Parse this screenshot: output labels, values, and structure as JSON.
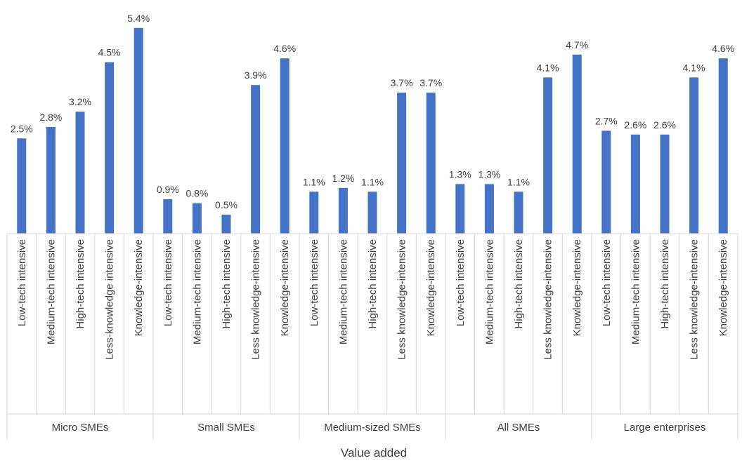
{
  "chart_data": {
    "type": "bar",
    "xlabel": "Value added",
    "ylabel": "",
    "ylim": [
      0,
      5.7
    ],
    "grid": false,
    "legend": "none",
    "bar_color": "#4472C4",
    "axis_color": "#D9D9D9",
    "text_color": "#404040",
    "groups": [
      {
        "name": "Micro SMEs",
        "categories": [
          "Low-tech intensive",
          "Medium-tech intensive",
          "High-tech intensive",
          "Less-knowledge intensive",
          "Knowledge-intensive"
        ],
        "values": [
          2.5,
          2.8,
          3.2,
          4.5,
          5.4
        ],
        "labels": [
          "2.5%",
          "2.8%",
          "3.2%",
          "4.5%",
          "5.4%"
        ]
      },
      {
        "name": "Small SMEs",
        "categories": [
          "Low-tech intensive",
          "Medium-tech intensive",
          "High-tech intensive",
          "Less knowledge-intensive",
          "Knowledge-intensive"
        ],
        "values": [
          0.9,
          0.8,
          0.5,
          3.9,
          4.6
        ],
        "labels": [
          "0.9%",
          "0.8%",
          "0.5%",
          "3.9%",
          "4.6%"
        ]
      },
      {
        "name": "Medium-sized SMEs",
        "categories": [
          "Low-tech intensive",
          "Medium-tech intensive",
          "High-tech intensive",
          "Less knowledge-intensive",
          "Knowledge-intensive"
        ],
        "values": [
          1.1,
          1.2,
          1.1,
          3.7,
          3.7
        ],
        "labels": [
          "1.1%",
          "1.2%",
          "1.1%",
          "3.7%",
          "3.7%"
        ]
      },
      {
        "name": "All SMEs",
        "categories": [
          "Low-tech intensive",
          "Medium-tech intensive",
          "High-tech intensive",
          "Less knowledge-intensive",
          "Knowledge-intensive"
        ],
        "values": [
          1.3,
          1.3,
          1.1,
          4.1,
          4.7
        ],
        "labels": [
          "1.3%",
          "1.3%",
          "1.1%",
          "4.1%",
          "4.7%"
        ]
      },
      {
        "name": "Large enterprises",
        "categories": [
          "Low-tech intensive",
          "Medium-tech intensive",
          "High-tech intensive",
          "Less knowledge-intensive",
          "Knowledge-intensive"
        ],
        "values": [
          2.7,
          2.6,
          2.6,
          4.1,
          4.6
        ],
        "labels": [
          "2.7%",
          "2.6%",
          "2.6%",
          "4.1%",
          "4.6%"
        ]
      }
    ]
  }
}
